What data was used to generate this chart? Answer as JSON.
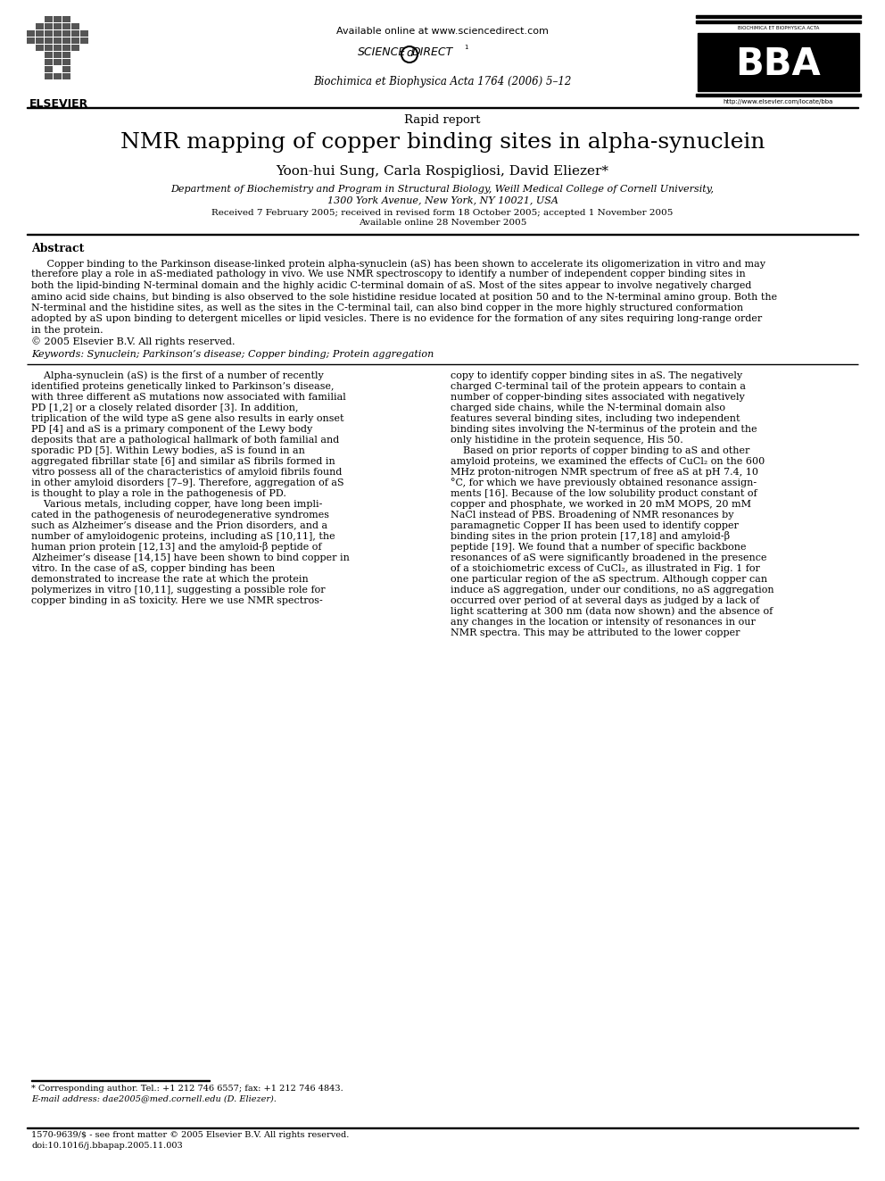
{
  "page_width": 9.92,
  "page_height": 13.23,
  "background_color": "#ffffff",
  "header_available": "Available online at www.sciencedirect.com",
  "journal_line": "Biochimica et Biophysica Acta 1764 (2006) 5–12",
  "bba_subtitle": "BIOCHIMICA ET BIOPHYSICA ACTA",
  "bba_url": "http://www.elsevier.com/locate/bba",
  "article_type": "Rapid report",
  "title": "NMR mapping of copper binding sites in alpha-synuclein",
  "authors": "Yoon-hui Sung, Carla Rospigliosi, David Eliezer*",
  "affil1": "Department of Biochemistry and Program in Structural Biology, Weill Medical College of Cornell University,",
  "affil2": "1300 York Avenue, New York, NY 10021, USA",
  "received": "Received 7 February 2005; received in revised form 18 October 2005; accepted 1 November 2005",
  "available2": "Available online 28 November 2005",
  "abstract_title": "Abstract",
  "abstract_lines": [
    "     Copper binding to the Parkinson disease-linked protein alpha-synuclein (aS) has been shown to accelerate its oligomerization in vitro and may",
    "therefore play a role in aS-mediated pathology in vivo. We use NMR spectroscopy to identify a number of independent copper binding sites in",
    "both the lipid-binding N-terminal domain and the highly acidic C-terminal domain of aS. Most of the sites appear to involve negatively charged",
    "amino acid side chains, but binding is also observed to the sole histidine residue located at position 50 and to the N-terminal amino group. Both the",
    "N-terminal and the histidine sites, as well as the sites in the C-terminal tail, can also bind copper in the more highly structured conformation",
    "adopted by aS upon binding to detergent micelles or lipid vesicles. There is no evidence for the formation of any sites requiring long-range order",
    "in the protein."
  ],
  "copyright": "© 2005 Elsevier B.V. All rights reserved.",
  "keywords": "Keywords: Synuclein; Parkinson’s disease; Copper binding; Protein aggregation",
  "left_col": [
    "    Alpha-synuclein (aS) is the first of a number of recently",
    "identified proteins genetically linked to Parkinson’s disease,",
    "with three different aS mutations now associated with familial",
    "PD [1,2] or a closely related disorder [3]. In addition,",
    "triplication of the wild type aS gene also results in early onset",
    "PD [4] and aS is a primary component of the Lewy body",
    "deposits that are a pathological hallmark of both familial and",
    "sporadic PD [5]. Within Lewy bodies, aS is found in an",
    "aggregated fibrillar state [6] and similar aS fibrils formed in",
    "vitro possess all of the characteristics of amyloid fibrils found",
    "in other amyloid disorders [7–9]. Therefore, aggregation of aS",
    "is thought to play a role in the pathogenesis of PD.",
    "    Various metals, including copper, have long been impli-",
    "cated in the pathogenesis of neurodegenerative syndromes",
    "such as Alzheimer’s disease and the Prion disorders, and a",
    "number of amyloidogenic proteins, including aS [10,11], the",
    "human prion protein [12,13] and the amyloid-β peptide of",
    "Alzheimer’s disease [14,15] have been shown to bind copper in",
    "vitro. In the case of aS, copper binding has been",
    "demonstrated to increase the rate at which the protein",
    "polymerizes in vitro [10,11], suggesting a possible role for",
    "copper binding in aS toxicity. Here we use NMR spectros-"
  ],
  "right_col": [
    "copy to identify copper binding sites in aS. The negatively",
    "charged C-terminal tail of the protein appears to contain a",
    "number of copper-binding sites associated with negatively",
    "charged side chains, while the N-terminal domain also",
    "features several binding sites, including two independent",
    "binding sites involving the N-terminus of the protein and the",
    "only histidine in the protein sequence, His 50.",
    "    Based on prior reports of copper binding to aS and other",
    "amyloid proteins, we examined the effects of CuCl₂ on the 600",
    "MHz proton-nitrogen NMR spectrum of free aS at pH 7.4, 10",
    "°C, for which we have previously obtained resonance assign-",
    "ments [16]. Because of the low solubility product constant of",
    "copper and phosphate, we worked in 20 mM MOPS, 20 mM",
    "NaCl instead of PBS. Broadening of NMR resonances by",
    "paramagnetic Copper II has been used to identify copper",
    "binding sites in the prion protein [17,18] and amyloid-β",
    "peptide [19]. We found that a number of specific backbone",
    "resonances of aS were significantly broadened in the presence",
    "of a stoichiometric excess of CuCl₂, as illustrated in Fig. 1 for",
    "one particular region of the aS spectrum. Although copper can",
    "induce aS aggregation, under our conditions, no aS aggregation",
    "occurred over period of at several days as judged by a lack of",
    "light scattering at 300 nm (data now shown) and the absence of",
    "any changes in the location or intensity of resonances in our",
    "NMR spectra. This may be attributed to the lower copper"
  ],
  "footnote_line": "* Corresponding author. Tel.: +1 212 746 6557; fax: +1 212 746 4843.",
  "footnote_email": "E-mail address: dae2005@med.cornell.edu (D. Eliezer).",
  "footer_issn": "1570-9639/$ - see front matter © 2005 Elsevier B.V. All rights reserved.",
  "footer_doi": "doi:10.1016/j.bbapap.2005.11.003"
}
